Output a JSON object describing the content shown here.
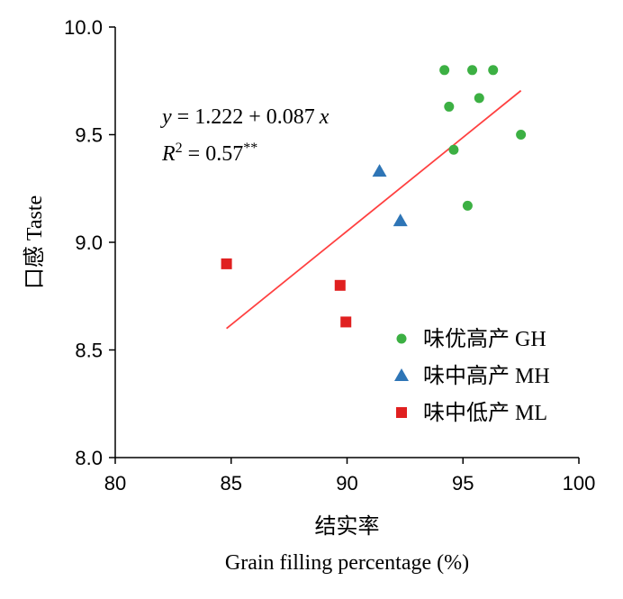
{
  "chart_data": {
    "type": "scatter",
    "xlabel_cn": "结实率",
    "xlabel_en": "Grain filling percentage (%)",
    "ylabel": "口感 Taste",
    "xlim": [
      80,
      100
    ],
    "ylim": [
      8.0,
      10.0
    ],
    "x_ticks": [
      "80",
      "85",
      "90",
      "95",
      "100"
    ],
    "y_ticks": [
      "8.0",
      "8.5",
      "9.0",
      "9.5",
      "10.0"
    ],
    "grid": false,
    "legend_position": "bottom-right",
    "series": [
      {
        "name": "味优高产 GH",
        "marker": "circle",
        "color": "#3cb043",
        "points": [
          [
            94.2,
            9.8
          ],
          [
            95.4,
            9.8
          ],
          [
            96.3,
            9.8
          ],
          [
            95.7,
            9.67
          ],
          [
            94.4,
            9.63
          ],
          [
            97.5,
            9.5
          ],
          [
            94.6,
            9.43
          ],
          [
            95.2,
            9.17
          ]
        ]
      },
      {
        "name": "味中高产 MH",
        "marker": "triangle",
        "color": "#2e75b6",
        "points": [
          [
            91.4,
            9.33
          ],
          [
            92.3,
            9.1
          ]
        ]
      },
      {
        "name": "味中低产 ML",
        "marker": "square",
        "color": "#e02020",
        "points": [
          [
            84.8,
            8.9
          ],
          [
            89.7,
            8.8
          ],
          [
            89.95,
            8.63
          ]
        ]
      }
    ],
    "trendline": {
      "color": "#ff4040",
      "x_range": [
        84.8,
        97.5
      ],
      "intercept": 1.222,
      "slope": 0.087
    },
    "annotation": {
      "eq_y": "y",
      "eq_rest": " = 1.222 + 0.087",
      "eq_x": "x",
      "r2_r": "R",
      "r2_sup": "2",
      "r2_rest": " = 0.57",
      "r2_stars": "**"
    }
  }
}
